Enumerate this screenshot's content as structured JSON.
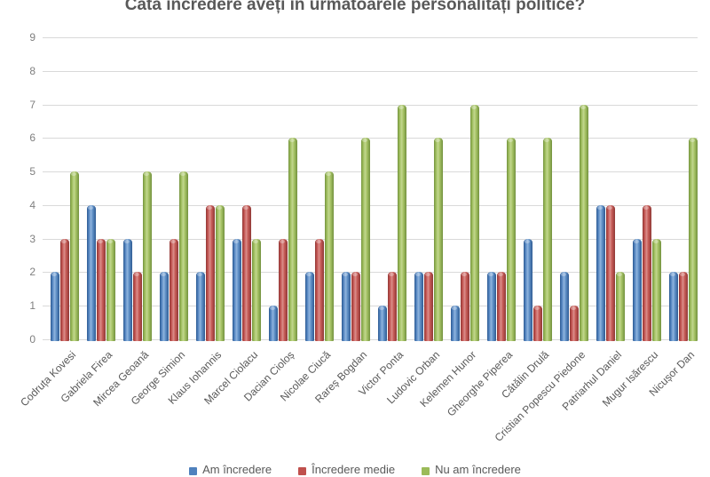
{
  "title": "Câtă încredere aveți în următoarele personalități politice?",
  "colors": {
    "blue": "#4F81BD",
    "red": "#C0504D",
    "green": "#9BBB59",
    "title_text": "#595959",
    "axis_text": "#7F7F7F",
    "category_text": "#595959",
    "gridline": "#D9D9D9"
  },
  "chart_data": {
    "type": "bar",
    "title": "Câtă încredere aveți în următoarele personalități politice?",
    "categories": [
      "Codruța Kovesi",
      "Gabriela Firea",
      "Mircea Geoană",
      "George Simion",
      "Klaus Iohannis",
      "Marcel Ciolacu",
      "Dacian Cioloș",
      "Nicolae Ciucă",
      "Rareș Bogdan",
      "Victor Ponta",
      "Ludovic Orban",
      "Kelemen Hunor",
      "Gheorghe Piperea",
      "Cătălin Drulă",
      "Cristian Popescu Piedone",
      "Patriarhul Daniel",
      "Mugur Isărescu",
      "Nicușor Dan"
    ],
    "series": [
      {
        "name": "Am încredere",
        "color_key": "blue",
        "values": [
          2,
          4,
          3,
          2,
          2,
          3,
          1,
          2,
          2,
          1,
          2,
          1,
          2,
          3,
          2,
          4,
          3,
          2
        ]
      },
      {
        "name": "Încredere medie",
        "color_key": "red",
        "values": [
          3,
          3,
          2,
          3,
          4,
          4,
          3,
          3,
          2,
          2,
          2,
          2,
          2,
          1,
          1,
          4,
          4,
          2
        ]
      },
      {
        "name": "Nu am încredere",
        "color_key": "green",
        "values": [
          5,
          3,
          5,
          5,
          4,
          3,
          6,
          5,
          6,
          7,
          6,
          7,
          6,
          6,
          7,
          2,
          3,
          6
        ]
      }
    ],
    "xlabel": "",
    "ylabel": "",
    "ylim": [
      0,
      9
    ],
    "yticks": [
      0,
      1,
      2,
      3,
      4,
      5,
      6,
      7,
      8,
      9
    ],
    "grid": true,
    "legend_position": "bottom"
  }
}
